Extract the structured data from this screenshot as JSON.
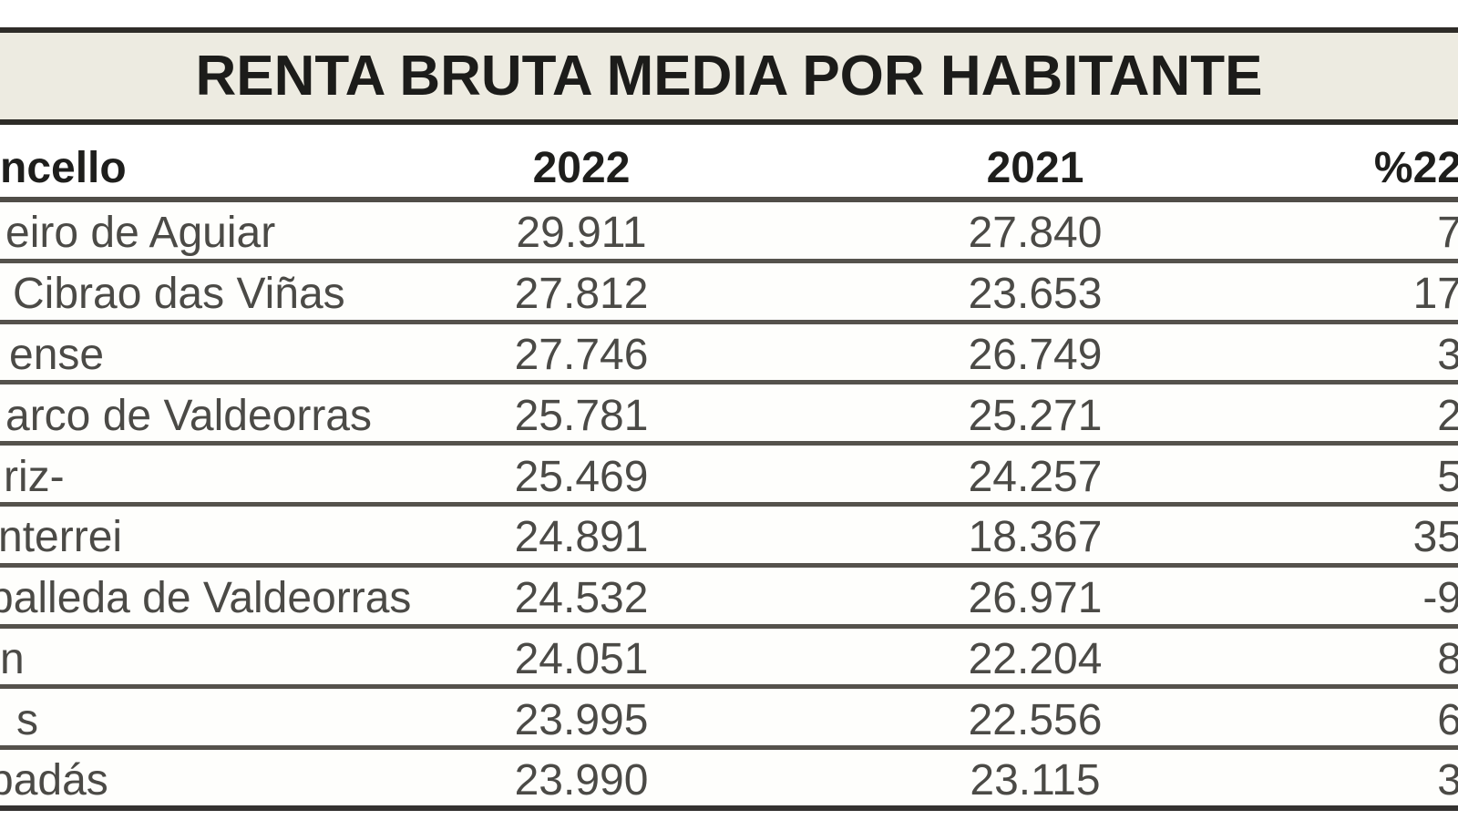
{
  "title": "RENTA BRUTA MEDIA POR HABITANTE",
  "table": {
    "columns": {
      "concello": "ncello",
      "year_2022": "2022",
      "year_2021": "2021",
      "pct_change": "%22"
    },
    "rows": [
      {
        "name": "eiro de Aguiar",
        "y2022": "29.911",
        "y2021": "27.840",
        "pct": "7"
      },
      {
        "name": "Cibrao das Viñas",
        "y2022": "27.812",
        "y2021": "23.653",
        "pct": "17"
      },
      {
        "name": "ense",
        "y2022": "27.746",
        "y2021": "26.749",
        "pct": "3"
      },
      {
        "name": "arco de Valdeorras",
        "y2022": "25.781",
        "y2021": "25.271",
        "pct": "2"
      },
      {
        "name": "riz-",
        "y2022": "25.469",
        "y2021": "24.257",
        "pct": "5"
      },
      {
        "name": "nterrei",
        "y2022": "24.891",
        "y2021": "18.367",
        "pct": "35"
      },
      {
        "name": "balleda de Valdeorras",
        "y2022": "24.532",
        "y2021": "26.971",
        "pct": "-9"
      },
      {
        "name": "n",
        "y2022": "24.051",
        "y2021": "22.204",
        "pct": "8"
      },
      {
        "name": "s",
        "y2022": "23.995",
        "y2021": "22.556",
        "pct": "6"
      },
      {
        "name": "badás",
        "y2022": "23.990",
        "y2021": "23.115",
        "pct": "3"
      }
    ]
  },
  "colors": {
    "title_background": "#edebe1",
    "heavy_border": "#2e2c28",
    "row_separator": "#55524c",
    "header_text": "#1e1e1c",
    "data_text": "#4b4a46"
  }
}
